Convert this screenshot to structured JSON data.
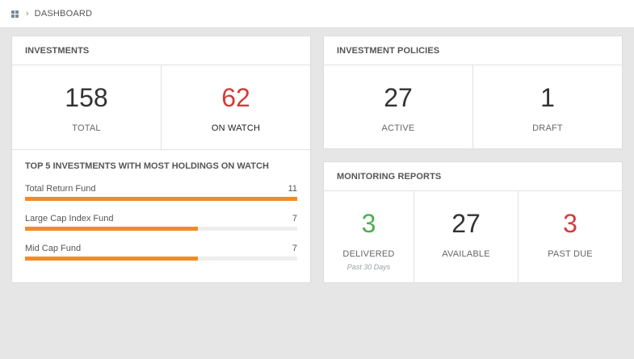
{
  "breadcrumb": {
    "current": "DASHBOARD"
  },
  "investments": {
    "title": "INVESTMENTS",
    "total": {
      "value": "158",
      "label": "TOTAL"
    },
    "on_watch": {
      "value": "62",
      "label": "ON WATCH"
    },
    "top5": {
      "title": "TOP 5 INVESTMENTS WITH MOST HOLDINGS ON WATCH",
      "max": 11,
      "items": [
        {
          "name": "Total Return Fund",
          "count": "11",
          "value": 11
        },
        {
          "name": "Large Cap Index Fund",
          "count": "7",
          "value": 7
        },
        {
          "name": "Mid Cap Fund",
          "count": "7",
          "value": 7
        }
      ]
    }
  },
  "policies": {
    "title": "INVESTMENT POLICIES",
    "active": {
      "value": "27",
      "label": "ACTIVE"
    },
    "draft": {
      "value": "1",
      "label": "DRAFT"
    }
  },
  "reports": {
    "title": "MONITORING REPORTS",
    "delivered": {
      "value": "3",
      "label": "DELIVERED",
      "sub": "Past 30 Days"
    },
    "available": {
      "value": "27",
      "label": "AVAILABLE"
    },
    "past_due": {
      "value": "3",
      "label": "PAST DUE"
    }
  },
  "colors": {
    "accent_bar": "#f08c28",
    "alert": "#d63b3b",
    "ok": "#4caf50"
  },
  "icons": {
    "home": "grid-home-icon",
    "separator": "chevron-right-icon"
  }
}
